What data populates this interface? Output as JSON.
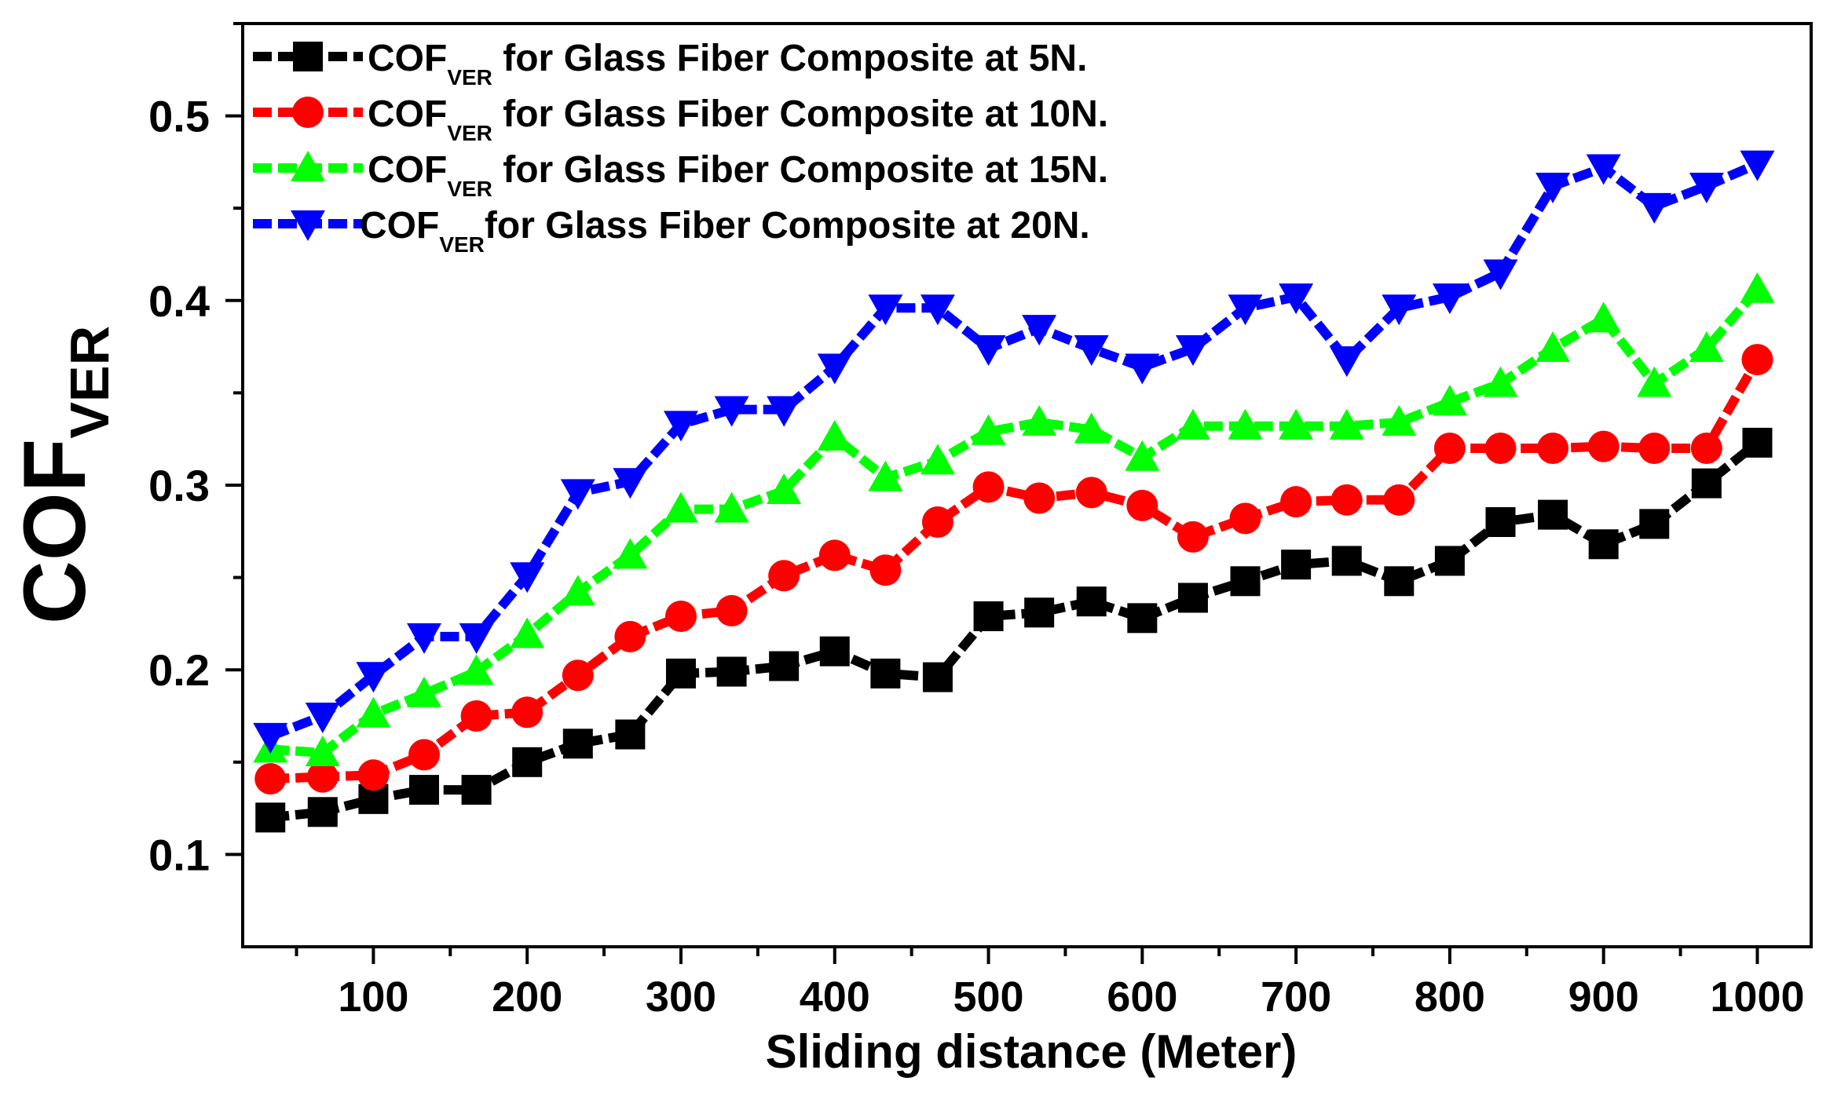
{
  "chart_data": {
    "type": "line",
    "xlabel": "Sliding distance (Meter)",
    "ylabel": {
      "main": "COF",
      "sub": "VER"
    },
    "xlim": [
      15,
      1035
    ],
    "ylim": [
      0.05,
      0.55
    ],
    "xticks": [
      100,
      200,
      300,
      400,
      500,
      600,
      700,
      800,
      900,
      1000
    ],
    "xtick_labels": [
      "100",
      "200",
      "300",
      "400",
      "500",
      "600",
      "700",
      "800",
      "900",
      "1000"
    ],
    "yticks": [
      0.1,
      0.2,
      0.3,
      0.4,
      0.5
    ],
    "ytick_labels": [
      "0.1",
      "0.2",
      "0.3",
      "0.4",
      "0.5"
    ],
    "grid": false,
    "legend_position": "top-left",
    "x": [
      33,
      67,
      100,
      133,
      167,
      200,
      233,
      267,
      300,
      333,
      367,
      400,
      433,
      467,
      500,
      533,
      567,
      600,
      633,
      667,
      700,
      733,
      767,
      800,
      833,
      867,
      900,
      933,
      967,
      1000
    ],
    "series": [
      {
        "name": {
          "main": "COF",
          "sub": "VER",
          "rest": " for Glass Fiber Composite at 5N."
        },
        "color": "#000000",
        "marker": "square",
        "values": [
          0.12,
          0.123,
          0.13,
          0.135,
          0.135,
          0.15,
          0.16,
          0.165,
          0.198,
          0.199,
          0.202,
          0.21,
          0.198,
          0.196,
          0.229,
          0.231,
          0.237,
          0.228,
          0.239,
          0.248,
          0.257,
          0.259,
          0.248,
          0.259,
          0.28,
          0.284,
          0.268,
          0.279,
          0.301,
          0.323
        ]
      },
      {
        "name": {
          "main": "COF",
          "sub": "VER",
          "rest": " for Glass Fiber Composite at 10N."
        },
        "color": "#ff0000",
        "marker": "circle",
        "values": [
          0.141,
          0.142,
          0.143,
          0.154,
          0.175,
          0.177,
          0.197,
          0.218,
          0.229,
          0.232,
          0.251,
          0.262,
          0.254,
          0.28,
          0.299,
          0.293,
          0.296,
          0.289,
          0.272,
          0.282,
          0.291,
          0.292,
          0.292,
          0.32,
          0.32,
          0.32,
          0.321,
          0.32,
          0.32,
          0.368
        ]
      },
      {
        "name": {
          "main": "COF",
          "sub": "VER",
          "rest": " for Glass Fiber Composite at 15N."
        },
        "color": "#00ff00",
        "marker": "triangle-up",
        "values": [
          0.157,
          0.155,
          0.176,
          0.187,
          0.199,
          0.219,
          0.242,
          0.262,
          0.287,
          0.287,
          0.297,
          0.326,
          0.304,
          0.313,
          0.329,
          0.334,
          0.33,
          0.315,
          0.332,
          0.332,
          0.332,
          0.332,
          0.334,
          0.345,
          0.355,
          0.374,
          0.39,
          0.355,
          0.374,
          0.406
        ]
      },
      {
        "name": {
          "main": "COF",
          "sub": "VER",
          "rest": "for Glass Fiber Composite at 20N."
        },
        "color": "#0000ff",
        "marker": "triangle-down",
        "values": [
          0.164,
          0.175,
          0.197,
          0.218,
          0.218,
          0.251,
          0.296,
          0.302,
          0.333,
          0.341,
          0.341,
          0.364,
          0.396,
          0.396,
          0.374,
          0.385,
          0.374,
          0.364,
          0.374,
          0.396,
          0.402,
          0.368,
          0.396,
          0.402,
          0.415,
          0.462,
          0.472,
          0.451,
          0.462,
          0.474
        ]
      }
    ]
  }
}
